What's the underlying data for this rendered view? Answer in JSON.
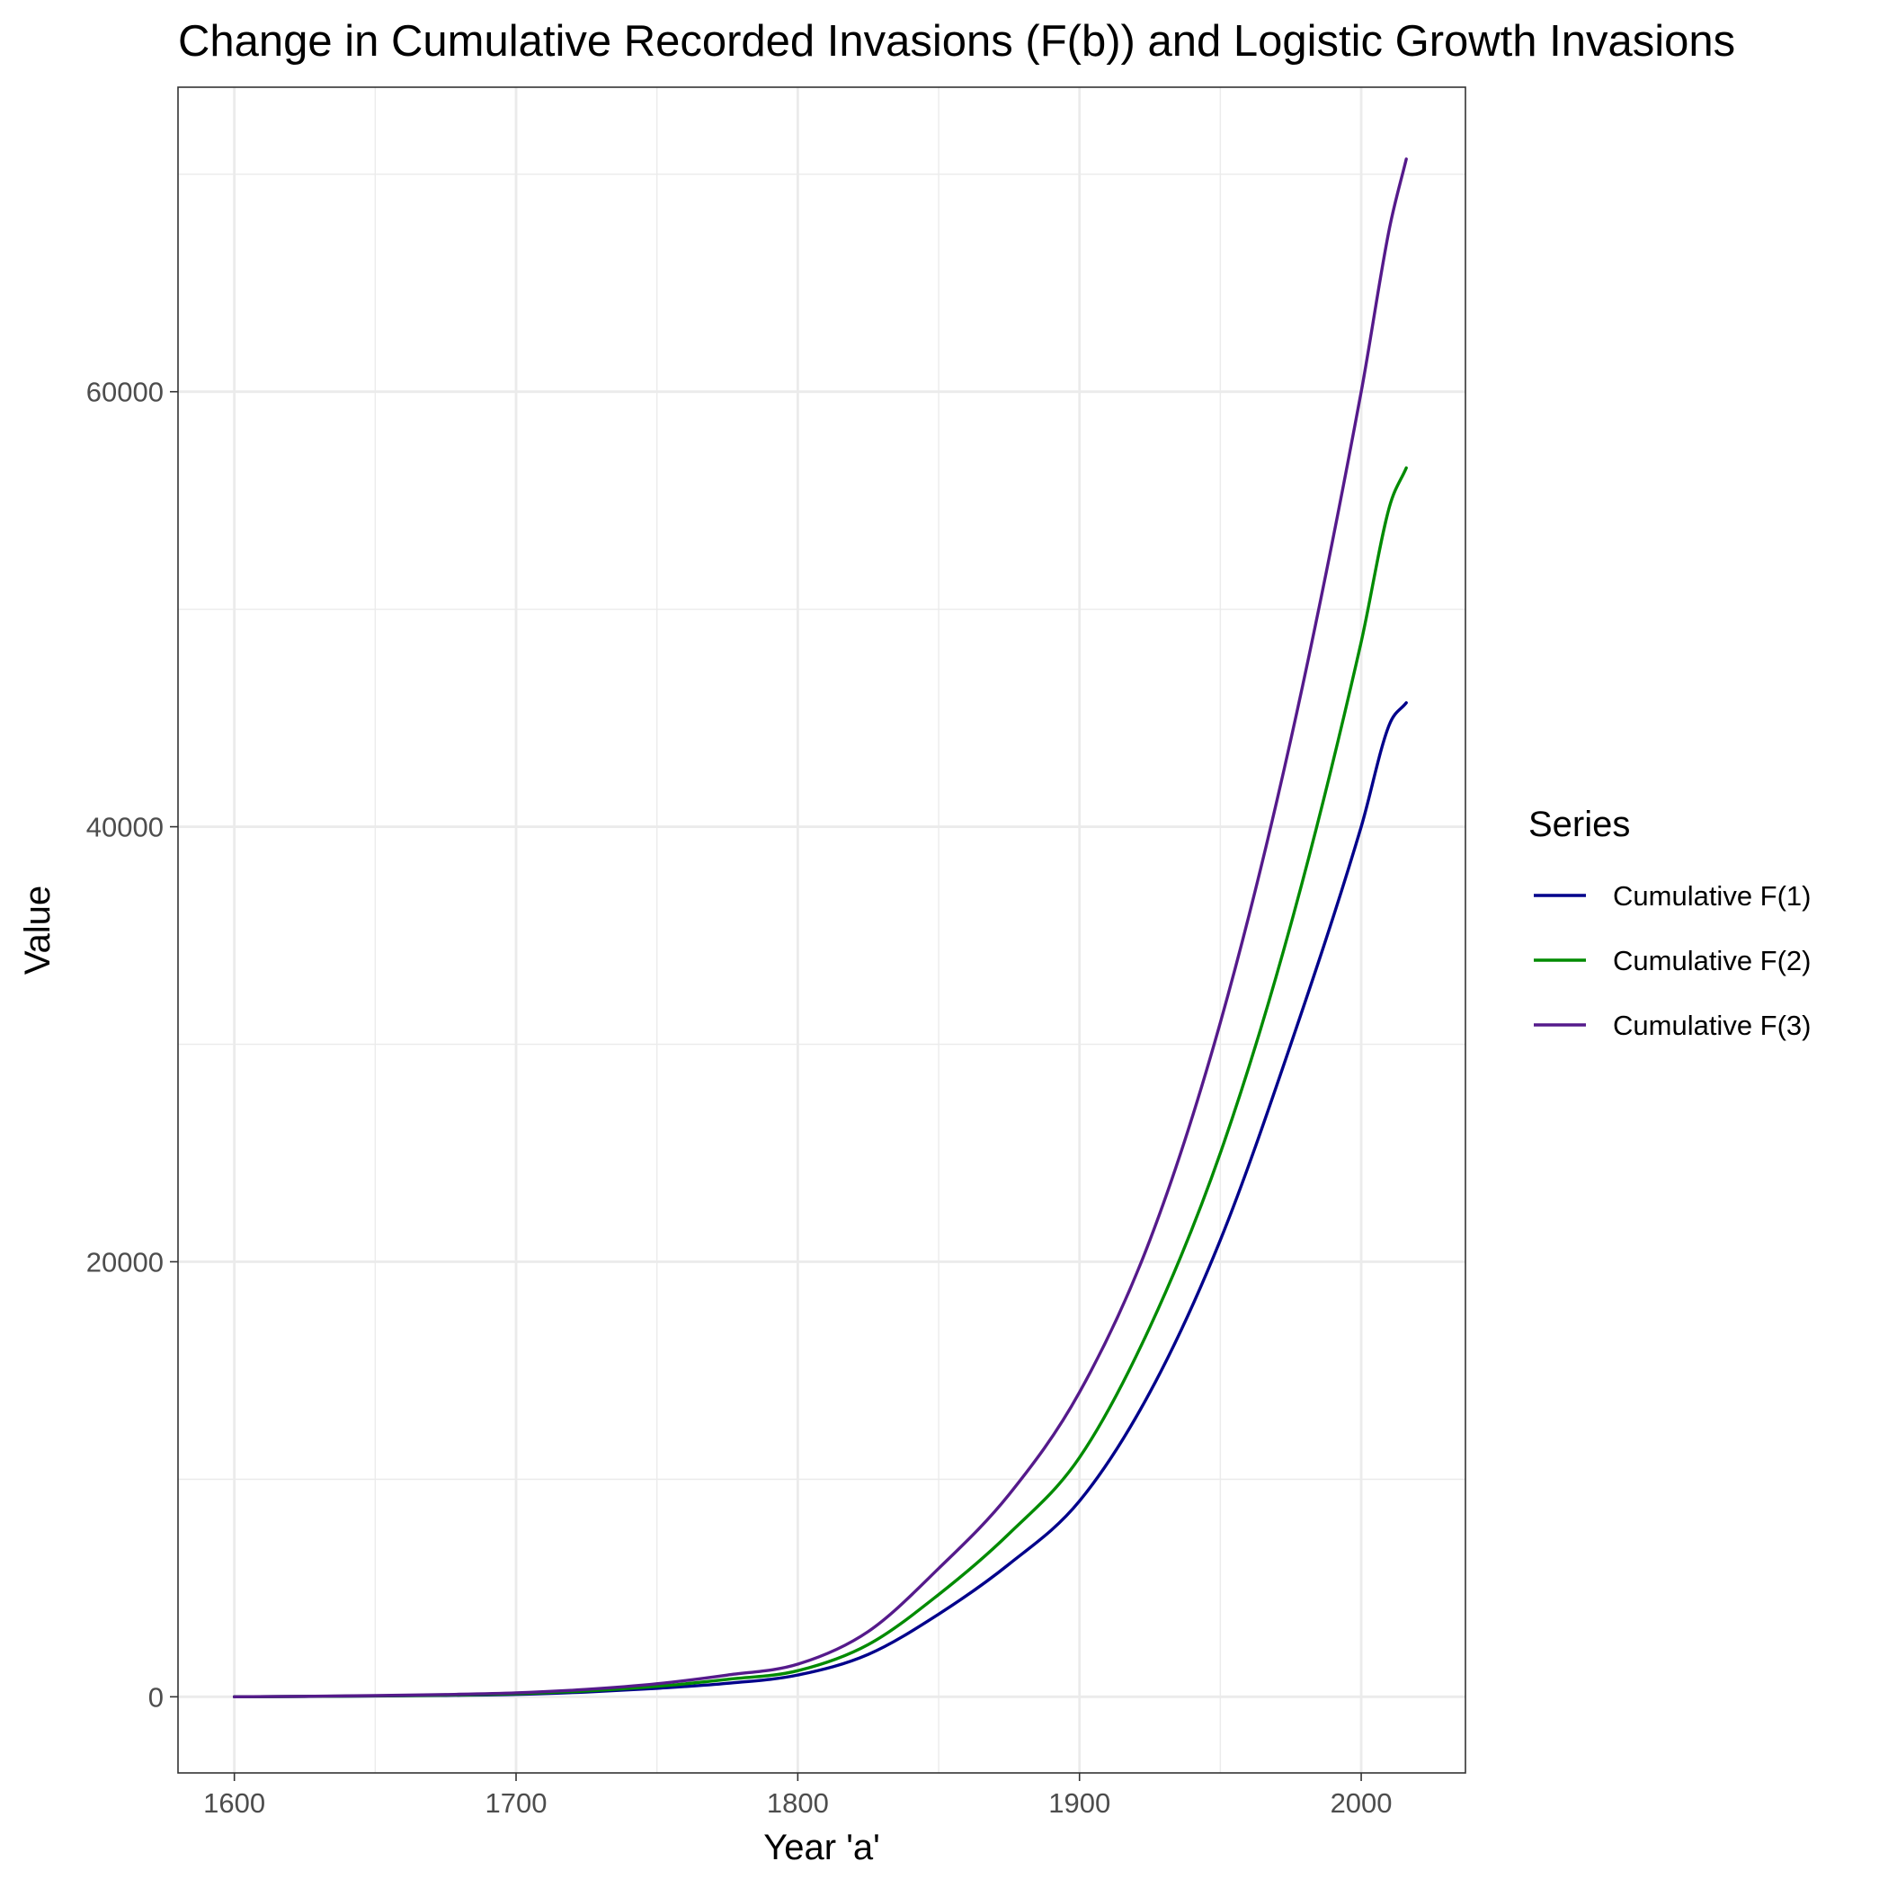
{
  "chart_data": {
    "type": "line",
    "title": "Change in Cumulative Recorded Invasions (F(b)) and Logistic Growth Invasions",
    "xlabel": "Year 'a'",
    "ylabel": "Value",
    "xlim": [
      1580,
      2037
    ],
    "ylim": [
      -3500,
      74000
    ],
    "x_ticks": [
      1600,
      1700,
      1800,
      1900,
      2000
    ],
    "x_tick_labels": [
      "1600",
      "1700",
      "1800",
      "1900",
      "2000"
    ],
    "y_ticks": [
      0,
      20000,
      40000,
      60000
    ],
    "y_tick_labels": [
      "0",
      "20000",
      "40000",
      "60000"
    ],
    "grid": true,
    "legend": {
      "title": "Series",
      "position": "right"
    },
    "x": [
      1600,
      1625,
      1650,
      1675,
      1700,
      1725,
      1750,
      1775,
      1800,
      1825,
      1850,
      1875,
      1900,
      1925,
      1950,
      1975,
      2000,
      2010,
      2016
    ],
    "series": [
      {
        "name": "Cumulative F(1)",
        "color": "#00008B",
        "values": [
          0,
          15,
          35,
          65,
          110,
          220,
          390,
          620,
          1000,
          1950,
          3800,
          6100,
          9000,
          14000,
          21000,
          30000,
          40000,
          44700,
          45700
        ]
      },
      {
        "name": "Cumulative F(2)",
        "color": "#008B00",
        "values": [
          0,
          18,
          42,
          80,
          140,
          270,
          480,
          800,
          1200,
          2400,
          4700,
          7500,
          11000,
          17000,
          25000,
          35500,
          48500,
          54700,
          56500
        ]
      },
      {
        "name": "Cumulative F(3)",
        "color": "#551A8B",
        "values": [
          0,
          22,
          55,
          105,
          180,
          340,
          600,
          1000,
          1500,
          3000,
          5900,
          9300,
          14000,
          21000,
          31000,
          44000,
          60000,
          67500,
          70700
        ]
      }
    ]
  }
}
